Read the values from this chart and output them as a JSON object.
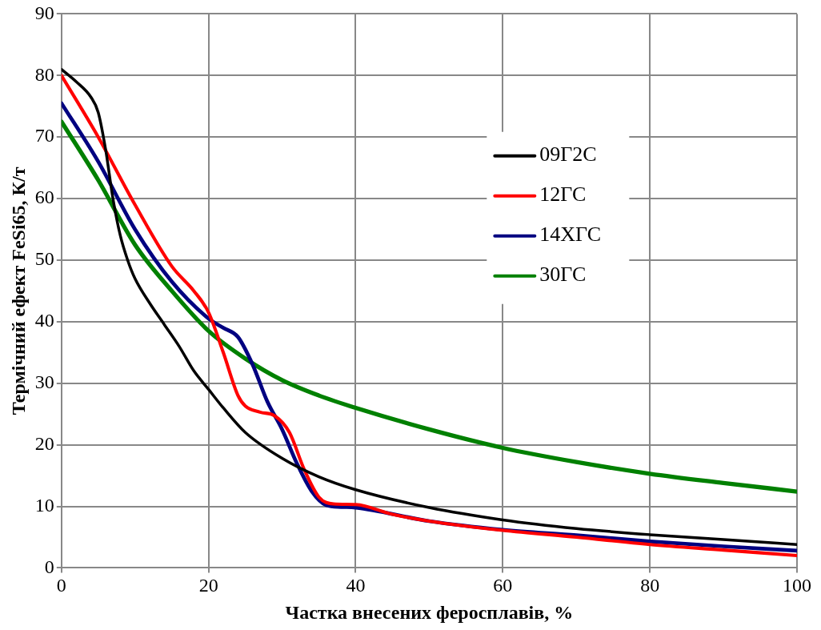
{
  "chart_data": {
    "type": "line",
    "xlabel": "Частка внесених феросплавів, %",
    "ylabel": "Термічний ефект FeSi65, К/т",
    "xlim": [
      0,
      100
    ],
    "xticks": [
      0,
      20,
      40,
      60,
      80,
      100
    ],
    "ylim": [
      0,
      90
    ],
    "yticks": [
      0,
      10,
      20,
      30,
      40,
      50,
      60,
      70,
      80,
      90
    ],
    "grid": true,
    "legend": "right",
    "marker": "none",
    "line_style": "solid",
    "series": [
      {
        "name": "09Г2С",
        "color": "#000000",
        "x": [
          0,
          2,
          4,
          5,
          6,
          7,
          8,
          9,
          10,
          12,
          14,
          16,
          18,
          20,
          22,
          25,
          30,
          35,
          40,
          50,
          60,
          70,
          80,
          90,
          100
        ],
        "values": [
          81,
          79,
          76.5,
          74,
          68,
          60,
          54,
          50,
          47,
          43,
          39.5,
          36,
          32,
          29,
          26,
          22,
          17.8,
          14.8,
          12.7,
          9.8,
          7.8,
          6.4,
          5.4,
          4.6,
          3.8
        ]
      },
      {
        "name": "12ГС",
        "color": "#ff0000",
        "x": [
          0,
          5,
          10,
          15,
          18,
          20,
          22,
          24,
          25,
          27,
          29,
          31,
          33,
          35,
          37,
          40,
          45,
          50,
          60,
          70,
          80,
          90,
          100
        ],
        "values": [
          80,
          70,
          59,
          49,
          45,
          41.5,
          35,
          28,
          26.3,
          25.3,
          24.7,
          22,
          16,
          11.5,
          10.4,
          10.3,
          8.7,
          7.6,
          6.1,
          5,
          3.8,
          2.9,
          2
        ]
      },
      {
        "name": "14ХГС",
        "color": "#000080",
        "x": [
          0,
          5,
          10,
          15,
          20,
          22,
          24,
          26,
          28,
          30,
          32,
          34,
          36,
          38,
          40,
          50,
          60,
          70,
          80,
          90,
          100
        ],
        "values": [
          75.5,
          66,
          55,
          46.5,
          40.5,
          39,
          37.5,
          33,
          27,
          22.5,
          17,
          12.5,
          10.2,
          9.9,
          9.8,
          7.6,
          6.2,
          5.3,
          4.3,
          3.5,
          2.8
        ]
      },
      {
        "name": "30ГС",
        "color": "#008000",
        "x": [
          0,
          5,
          10,
          15,
          20,
          25,
          30,
          35,
          40,
          50,
          60,
          70,
          80,
          90,
          100
        ],
        "values": [
          72.5,
          63,
          52.5,
          45,
          38.5,
          34,
          30.5,
          28,
          26,
          22.5,
          19.5,
          17.2,
          15.3,
          13.8,
          12.4
        ]
      }
    ]
  }
}
